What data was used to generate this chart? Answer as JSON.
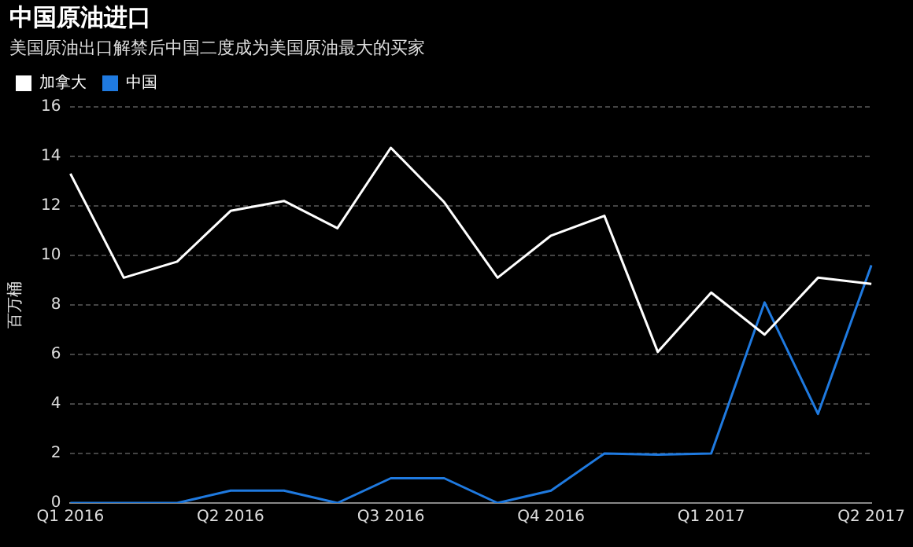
{
  "chart_data": {
    "type": "line",
    "title": "中国原油进口",
    "subtitle": "美国原油出口解禁后中国二度成为美国原油最大的买家",
    "ylabel": "百万桶",
    "categories": [
      "Q1 2016",
      null,
      null,
      "Q2 2016",
      null,
      null,
      "Q3 2016",
      null,
      null,
      "Q4 2016",
      null,
      null,
      "Q1 2017",
      null,
      null,
      "Q2 2017"
    ],
    "series": [
      {
        "name": "加拿大",
        "color": "#ffffff",
        "values": [
          13.3,
          9.1,
          9.75,
          11.8,
          12.2,
          11.1,
          14.35,
          12.15,
          9.1,
          10.8,
          11.6,
          6.1,
          8.5,
          6.8,
          9.1,
          8.85
        ]
      },
      {
        "name": "中国",
        "color": "#1f7ae0",
        "values": [
          0,
          0,
          0,
          0.5,
          0.5,
          0,
          1,
          1,
          0,
          0.5,
          2,
          1.95,
          2,
          8.1,
          3.6,
          9.6
        ]
      }
    ],
    "ylim": [
      0,
      16
    ],
    "yticks": [
      0,
      2,
      4,
      6,
      8,
      10,
      12,
      14,
      16
    ],
    "grid": "y",
    "legend": "top left",
    "marker": "none",
    "line_style": "solid"
  }
}
